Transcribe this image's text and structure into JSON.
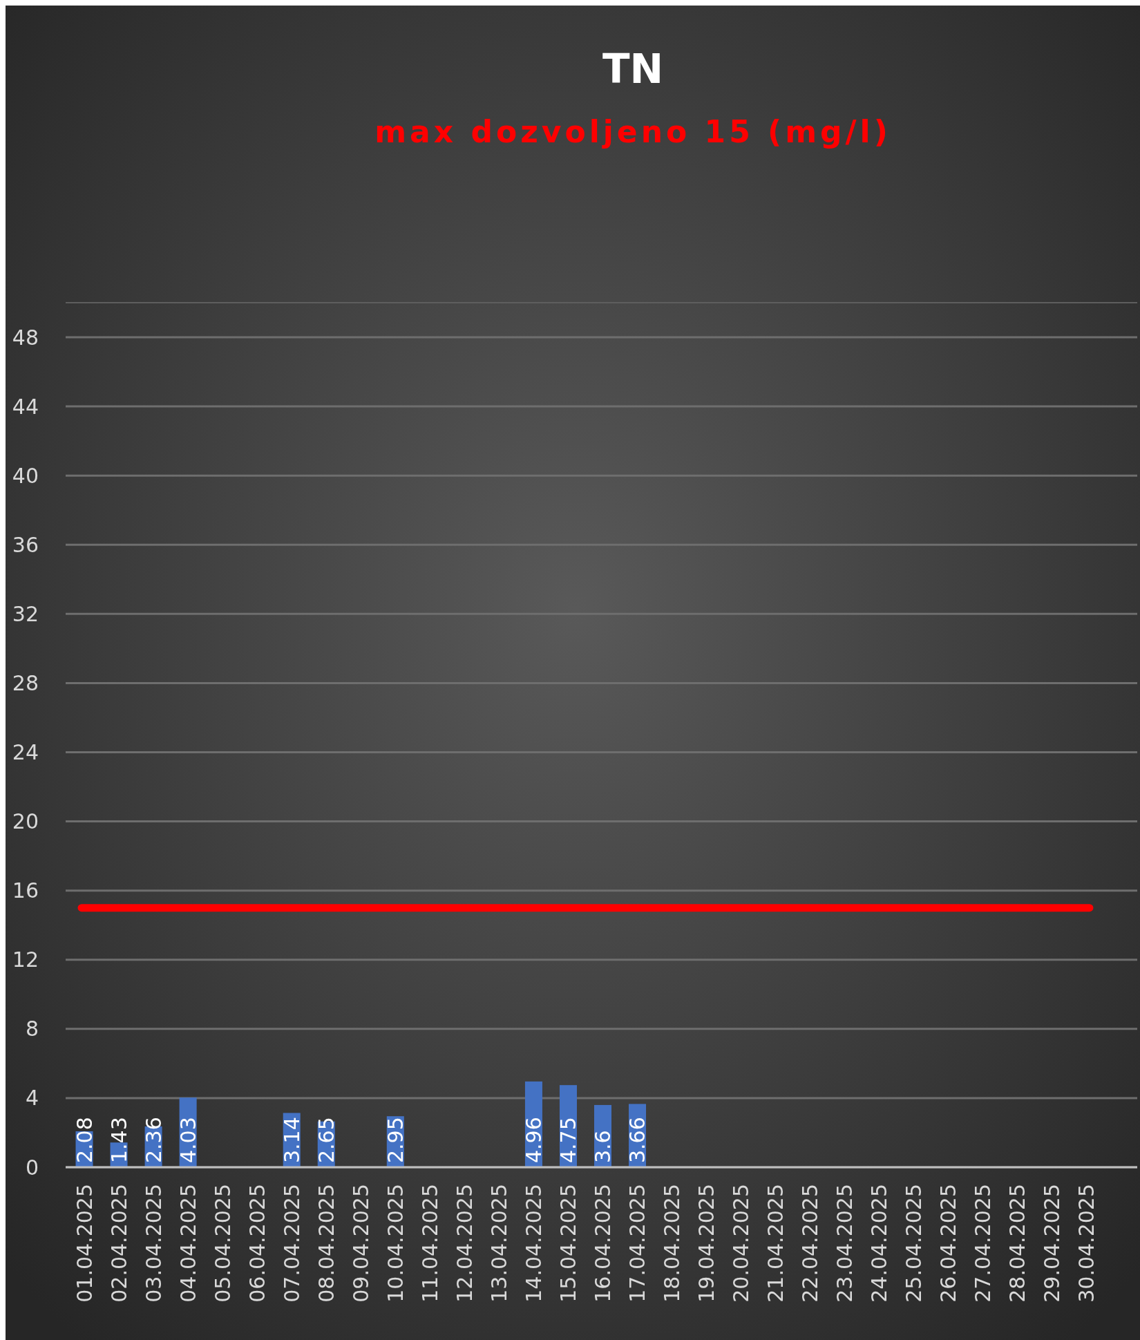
{
  "chart_data": {
    "type": "bar",
    "title": "TN",
    "subtitle": "max dozvoljeno 15 (mg/l)",
    "categories": [
      "01.04.2025",
      "02.04.2025",
      "03.04.2025",
      "04.04.2025",
      "05.04.2025",
      "06.04.2025",
      "07.04.2025",
      "08.04.2025",
      "09.04.2025",
      "10.04.2025",
      "11.04.2025",
      "12.04.2025",
      "13.04.2025",
      "14.04.2025",
      "15.04.2025",
      "16.04.2025",
      "17.04.2025",
      "18.04.2025",
      "19.04.2025",
      "20.04.2025",
      "21.04.2025",
      "22.04.2025",
      "23.04.2025",
      "24.04.2025",
      "25.04.2025",
      "26.04.2025",
      "27.04.2025",
      "28.04.2025",
      "29.04.2025",
      "30.04.2025"
    ],
    "series": [
      {
        "color": "#4472c4",
        "values": [
          2.08,
          1.43,
          2.36,
          4.03,
          null,
          null,
          3.14,
          2.65,
          null,
          2.95,
          null,
          null,
          null,
          4.96,
          4.75,
          3.6,
          3.66,
          null,
          null,
          null,
          null,
          null,
          null,
          null,
          null,
          null,
          null,
          null,
          null,
          null
        ]
      }
    ],
    "ylim": [
      0,
      50
    ],
    "yticks": [
      0,
      4,
      8,
      12,
      16,
      20,
      24,
      28,
      32,
      36,
      40,
      44,
      48
    ],
    "grid": "y",
    "data_labels": true,
    "ref_lines": [
      {
        "axis": "y",
        "value": 15,
        "color": "#ff0000",
        "line_style": "solid"
      }
    ]
  }
}
